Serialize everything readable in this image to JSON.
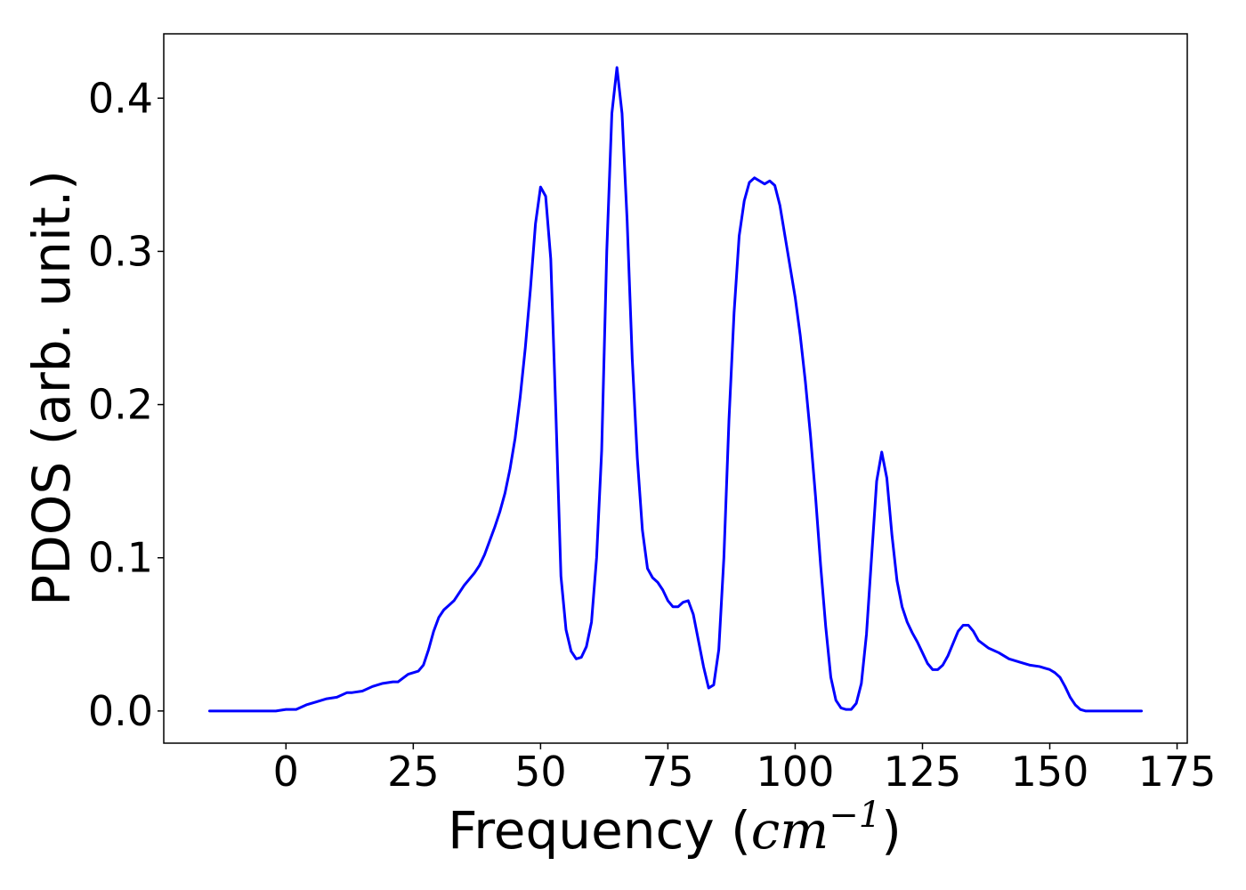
{
  "chart_data": {
    "type": "line",
    "title": "",
    "xlabel": "Frequency (cm⁻¹)",
    "xlabel_parts": {
      "prefix": "Frequency (",
      "unit_base": "cm",
      "unit_exp": "−1",
      "suffix": ")"
    },
    "ylabel": "PDOS (arb. unit.)",
    "xlim": [
      -24,
      177
    ],
    "ylim": [
      -0.021,
      0.442
    ],
    "xticks": [
      0,
      25,
      50,
      75,
      100,
      125,
      150,
      175
    ],
    "xtick_labels": [
      "0",
      "25",
      "50",
      "75",
      "100",
      "125",
      "150",
      "175"
    ],
    "yticks": [
      0.0,
      0.1,
      0.2,
      0.3,
      0.4
    ],
    "ytick_labels": [
      "0.0",
      "0.1",
      "0.2",
      "0.3",
      "0.4"
    ],
    "grid": false,
    "legend": "none",
    "line_color": "#0000ff",
    "series": [
      {
        "x": [
          -15,
          -10,
          -5,
          -2,
          0,
          2,
          4,
          6,
          8,
          10,
          12,
          13,
          15,
          17,
          19,
          21,
          22,
          24,
          26,
          27,
          28,
          29,
          30,
          31,
          32,
          33,
          34,
          35,
          36,
          37,
          38,
          39,
          40,
          41,
          42,
          43,
          44,
          45,
          46,
          47,
          48,
          49,
          50,
          51,
          52,
          53,
          54,
          55,
          56,
          57,
          58,
          59,
          60,
          61,
          62,
          63,
          64,
          65,
          66,
          67,
          68,
          69,
          70,
          71,
          72,
          73,
          74,
          75,
          76,
          77,
          78,
          79,
          80,
          81,
          82,
          83,
          84,
          85,
          86,
          87,
          88,
          89,
          90,
          91,
          92,
          93,
          94,
          95,
          96,
          97,
          98,
          99,
          100,
          101,
          102,
          103,
          104,
          105,
          106,
          107,
          108,
          109,
          110,
          111,
          112,
          113,
          114,
          115,
          116,
          117,
          118,
          119,
          120,
          121,
          122,
          123,
          124,
          125,
          126,
          127,
          128,
          129,
          130,
          131,
          132,
          133,
          134,
          135,
          136,
          138,
          140,
          142,
          144,
          146,
          148,
          149,
          150,
          151,
          152,
          153,
          154,
          155,
          156,
          157,
          158,
          160,
          162,
          164,
          166,
          168
        ],
        "y": [
          0.0,
          0.0,
          0.0,
          0.0,
          0.001,
          0.001,
          0.004,
          0.006,
          0.008,
          0.009,
          0.012,
          0.012,
          0.013,
          0.016,
          0.018,
          0.019,
          0.019,
          0.024,
          0.026,
          0.03,
          0.04,
          0.052,
          0.061,
          0.066,
          0.069,
          0.072,
          0.077,
          0.082,
          0.086,
          0.09,
          0.095,
          0.102,
          0.111,
          0.12,
          0.13,
          0.142,
          0.158,
          0.178,
          0.205,
          0.237,
          0.275,
          0.318,
          0.342,
          0.336,
          0.295,
          0.195,
          0.088,
          0.053,
          0.039,
          0.034,
          0.035,
          0.042,
          0.058,
          0.1,
          0.17,
          0.3,
          0.39,
          0.42,
          0.39,
          0.32,
          0.23,
          0.165,
          0.118,
          0.093,
          0.087,
          0.084,
          0.079,
          0.072,
          0.068,
          0.068,
          0.071,
          0.072,
          0.063,
          0.046,
          0.029,
          0.015,
          0.017,
          0.04,
          0.1,
          0.19,
          0.26,
          0.31,
          0.333,
          0.345,
          0.348,
          0.346,
          0.344,
          0.346,
          0.343,
          0.33,
          0.31,
          0.29,
          0.27,
          0.245,
          0.215,
          0.18,
          0.14,
          0.095,
          0.055,
          0.022,
          0.007,
          0.002,
          0.001,
          0.001,
          0.005,
          0.018,
          0.05,
          0.1,
          0.15,
          0.169,
          0.152,
          0.115,
          0.085,
          0.068,
          0.058,
          0.051,
          0.045,
          0.038,
          0.031,
          0.027,
          0.027,
          0.03,
          0.036,
          0.044,
          0.052,
          0.056,
          0.056,
          0.052,
          0.046,
          0.041,
          0.038,
          0.034,
          0.032,
          0.03,
          0.029,
          0.028,
          0.027,
          0.025,
          0.022,
          0.016,
          0.009,
          0.004,
          0.001,
          0.0,
          0.0,
          0.0,
          0.0,
          0.0,
          0.0,
          0.0
        ]
      }
    ]
  }
}
